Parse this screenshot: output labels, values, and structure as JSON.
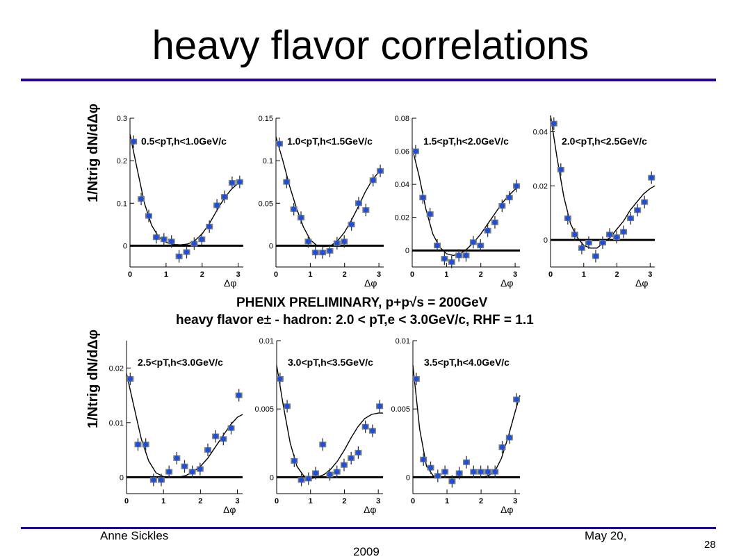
{
  "slide": {
    "title": "heavy flavor correlations",
    "caption_line1": "PHENIX PRELIMINARY, p+p√s = 200GeV",
    "caption_line2": "heavy flavor e± - hadron: 2.0 < pT,e < 3.0GeV/c, RHF = 1.1",
    "yaxis_label": "1/Ntrig dN/dΔφ"
  },
  "footer": {
    "author": "Anne Sickles",
    "date_line1": "May 20,",
    "date_line2": "2009",
    "page": "28"
  },
  "colors": {
    "rule": "#2200aa",
    "marker": "#1a4fe0",
    "marker_edge": "#7a7a7a"
  },
  "chart_data": [
    {
      "type": "scatter",
      "label": "0.5<pT,h<1.0GeV/c",
      "xlabel": "Δφ",
      "ylim": [
        -0.05,
        0.3
      ],
      "xlim": [
        0,
        3.14
      ],
      "yticks": [
        0,
        0.1,
        0.2,
        0.3
      ],
      "ytick_labels": [
        "0",
        "0.1",
        "0.2",
        "0.3"
      ],
      "xticks": [
        0,
        1,
        2,
        3
      ],
      "xtick_labels": [
        "0",
        "1",
        "2",
        "3"
      ],
      "series": [
        {
          "x": [
            0.1,
            0.31,
            0.52,
            0.73,
            0.94,
            1.15,
            1.36,
            1.57,
            1.78,
            1.99,
            2.2,
            2.41,
            2.62,
            2.83,
            3.04
          ],
          "y": [
            0.245,
            0.11,
            0.07,
            0.02,
            0.015,
            0.01,
            -0.025,
            -0.015,
            0.005,
            0.015,
            0.045,
            0.095,
            0.115,
            0.148,
            0.15
          ]
        },
        {
          "x": [
            0,
            0.2,
            0.4,
            0.6,
            0.8,
            1.0,
            1.2,
            1.4,
            1.6,
            1.8,
            2.0,
            2.2,
            2.4,
            2.6,
            2.8,
            3.0,
            3.14
          ],
          "y": [
            0.262,
            0.18,
            0.1,
            0.048,
            0.02,
            0.008,
            0.003,
            0.002,
            0.004,
            0.012,
            0.028,
            0.052,
            0.082,
            0.11,
            0.132,
            0.147,
            0.152
          ]
        }
      ]
    },
    {
      "type": "scatter",
      "label": "1.0<pT,h<1.5GeV/c",
      "xlabel": "Δφ",
      "ylim": [
        -0.025,
        0.15
      ],
      "xlim": [
        0,
        3.14
      ],
      "yticks": [
        0,
        0.05,
        0.1,
        0.15
      ],
      "ytick_labels": [
        "0",
        "0.05",
        "0.1",
        "0.15"
      ],
      "xticks": [
        0,
        1,
        2,
        3
      ],
      "xtick_labels": [
        "0",
        "1",
        "2",
        "3"
      ],
      "series": [
        {
          "x": [
            0.1,
            0.31,
            0.52,
            0.73,
            0.94,
            1.15,
            1.36,
            1.57,
            1.78,
            1.99,
            2.2,
            2.41,
            2.62,
            2.83,
            3.04
          ],
          "y": [
            0.12,
            0.075,
            0.043,
            0.033,
            0.005,
            -0.008,
            -0.008,
            -0.006,
            0.003,
            0.005,
            0.025,
            0.05,
            0.042,
            0.077,
            0.088
          ]
        },
        {
          "x": [
            0,
            0.2,
            0.4,
            0.6,
            0.8,
            1.0,
            1.2,
            1.4,
            1.6,
            1.8,
            2.0,
            2.2,
            2.4,
            2.6,
            2.8,
            3.0,
            3.14
          ],
          "y": [
            0.128,
            0.1,
            0.07,
            0.044,
            0.022,
            0.007,
            0.0,
            -0.001,
            0.0,
            0.006,
            0.016,
            0.03,
            0.046,
            0.063,
            0.077,
            0.087,
            0.09
          ]
        }
      ]
    },
    {
      "type": "scatter",
      "label": "1.5<pT,h<2.0GeV/c",
      "xlabel": "Δφ",
      "ylim": [
        -0.01,
        0.08
      ],
      "xlim": [
        0,
        3.14
      ],
      "yticks": [
        0,
        0.02,
        0.04,
        0.06,
        0.08
      ],
      "ytick_labels": [
        "0",
        "0.02",
        "0.04",
        "0.06",
        "0.08"
      ],
      "xticks": [
        0,
        1,
        2,
        3
      ],
      "xtick_labels": [
        "0",
        "1",
        "2",
        "3"
      ],
      "series": [
        {
          "x": [
            0.1,
            0.31,
            0.52,
            0.73,
            0.94,
            1.15,
            1.36,
            1.57,
            1.78,
            1.99,
            2.2,
            2.41,
            2.62,
            2.83,
            3.04
          ],
          "y": [
            0.06,
            0.032,
            0.022,
            0.003,
            -0.005,
            -0.007,
            -0.003,
            -0.003,
            0.005,
            0.003,
            0.012,
            0.017,
            0.027,
            0.032,
            0.039
          ]
        },
        {
          "x": [
            0,
            0.2,
            0.4,
            0.6,
            0.8,
            1.0,
            1.2,
            1.4,
            1.6,
            1.8,
            2.0,
            2.2,
            2.4,
            2.6,
            2.8,
            3.0,
            3.14
          ],
          "y": [
            0.062,
            0.045,
            0.025,
            0.01,
            0.002,
            -0.002,
            -0.003,
            -0.002,
            0.001,
            0.005,
            0.01,
            0.016,
            0.022,
            0.028,
            0.033,
            0.037,
            0.039
          ]
        }
      ]
    },
    {
      "type": "scatter",
      "label": "2.0<pT,h<2.5GeV/c",
      "xlabel": "Δφ",
      "ylim": [
        -0.01,
        0.045
      ],
      "xlim": [
        0,
        3.14
      ],
      "yticks": [
        0,
        0.02,
        0.04
      ],
      "ytick_labels": [
        "0",
        "0.02",
        "0.04"
      ],
      "xticks": [
        0,
        1,
        2,
        3
      ],
      "xtick_labels": [
        "0",
        "1",
        "2",
        "3"
      ],
      "series": [
        {
          "x": [
            0.1,
            0.31,
            0.52,
            0.73,
            0.94,
            1.15,
            1.36,
            1.57,
            1.78,
            1.99,
            2.2,
            2.41,
            2.62,
            2.83,
            3.04
          ],
          "y": [
            0.043,
            0.026,
            0.008,
            0.002,
            -0.003,
            -0.001,
            -0.006,
            -0.001,
            0.002,
            0.001,
            0.003,
            0.008,
            0.011,
            0.014,
            0.023
          ]
        },
        {
          "x": [
            0,
            0.2,
            0.4,
            0.6,
            0.8,
            1.0,
            1.2,
            1.4,
            1.6,
            1.8,
            2.0,
            2.2,
            2.4,
            2.6,
            2.8,
            3.0,
            3.14
          ],
          "y": [
            0.046,
            0.03,
            0.016,
            0.006,
            0.001,
            -0.002,
            -0.003,
            -0.003,
            -0.001,
            0.001,
            0.004,
            0.007,
            0.011,
            0.014,
            0.017,
            0.019,
            0.02
          ]
        }
      ]
    },
    {
      "type": "scatter",
      "label": "2.5<pT,h<3.0GeV/c",
      "xlabel": "Δφ",
      "ylim": [
        -0.003,
        0.025
      ],
      "xlim": [
        0,
        3.14
      ],
      "yticks": [
        0,
        0.01,
        0.02
      ],
      "ytick_labels": [
        "0",
        "0.01",
        "0.02"
      ],
      "xticks": [
        0,
        1,
        2,
        3
      ],
      "xtick_labels": [
        "0",
        "1",
        "2",
        "3"
      ],
      "series": [
        {
          "x": [
            0.1,
            0.31,
            0.52,
            0.73,
            0.94,
            1.15,
            1.36,
            1.57,
            1.78,
            1.99,
            2.2,
            2.41,
            2.62,
            2.83,
            3.04
          ],
          "y": [
            0.018,
            0.006,
            0.006,
            -0.0005,
            -0.0005,
            0.001,
            0.0035,
            0.002,
            0.001,
            0.0015,
            0.005,
            0.0075,
            0.007,
            0.009,
            0.015
          ]
        },
        {
          "x": [
            0,
            0.2,
            0.4,
            0.6,
            0.8,
            1.0,
            1.2,
            1.4,
            1.6,
            1.8,
            2.0,
            2.2,
            2.4,
            2.6,
            2.8,
            3.0,
            3.14
          ],
          "y": [
            0.019,
            0.013,
            0.007,
            0.003,
            0.0008,
            0.0001,
            0.0,
            0.0,
            0.0003,
            0.001,
            0.002,
            0.0035,
            0.0055,
            0.0075,
            0.0095,
            0.011,
            0.0115
          ]
        }
      ]
    },
    {
      "type": "scatter",
      "label": "3.0<pT,h<3.5GeV/c",
      "xlabel": "Δφ",
      "ylim": [
        -0.0012,
        0.01
      ],
      "xlim": [
        0,
        3.14
      ],
      "yticks": [
        0,
        0.005,
        0.01
      ],
      "ytick_labels": [
        "0",
        "0.005",
        "0.01"
      ],
      "xticks": [
        0,
        1,
        2,
        3
      ],
      "xtick_labels": [
        "0",
        "1",
        "2",
        "3"
      ],
      "series": [
        {
          "x": [
            0.1,
            0.31,
            0.52,
            0.73,
            0.94,
            1.15,
            1.36,
            1.57,
            1.78,
            1.99,
            2.2,
            2.41,
            2.62,
            2.83,
            3.04
          ],
          "y": [
            0.0072,
            0.0052,
            0.0012,
            -0.0002,
            -0.0001,
            0.0003,
            0.0024,
            0.0002,
            0.0004,
            0.0009,
            0.0014,
            0.0018,
            0.0037,
            0.0034,
            0.0052
          ]
        },
        {
          "x": [
            0,
            0.2,
            0.4,
            0.6,
            0.8,
            1.0,
            1.2,
            1.4,
            1.6,
            1.8,
            2.0,
            2.2,
            2.4,
            2.6,
            2.8,
            3.0,
            3.14
          ],
          "y": [
            0.0082,
            0.0052,
            0.0025,
            0.0008,
            0.0001,
            -0.0001,
            0.0,
            0.0002,
            0.0006,
            0.0012,
            0.002,
            0.0029,
            0.0037,
            0.0043,
            0.0046,
            0.0047,
            0.0047
          ]
        }
      ]
    },
    {
      "type": "scatter",
      "label": "3.5<pT,h<4.0GeV/c",
      "xlabel": "Δφ",
      "ylim": [
        -0.0012,
        0.01
      ],
      "xlim": [
        0,
        3.14
      ],
      "yticks": [
        0,
        0.005,
        0.01
      ],
      "ytick_labels": [
        "0",
        "0.005",
        "0.01"
      ],
      "xticks": [
        0,
        1,
        2,
        3
      ],
      "xtick_labels": [
        "0",
        "1",
        "2",
        "3"
      ],
      "series": [
        {
          "x": [
            0.1,
            0.31,
            0.52,
            0.73,
            0.94,
            1.15,
            1.36,
            1.57,
            1.78,
            1.99,
            2.2,
            2.41,
            2.62,
            2.83,
            3.04
          ],
          "y": [
            0.0072,
            0.0013,
            0.0007,
            0.0001,
            0.0004,
            -0.0003,
            0.0003,
            0.0011,
            0.0004,
            0.0004,
            0.0004,
            0.0004,
            0.0022,
            0.0029,
            0.0057
          ]
        },
        {
          "x": [
            0,
            0.2,
            0.4,
            0.6,
            0.8,
            1.0,
            1.2,
            1.4,
            1.6,
            1.8,
            2.0,
            2.2,
            2.4,
            2.6,
            2.8,
            3.0,
            3.14
          ],
          "y": [
            0.0082,
            0.0035,
            0.0008,
            0.0001,
            0.0,
            0.0,
            0.0,
            0.0,
            0.0,
            0.0,
            0.0,
            0.0001,
            0.0004,
            0.0014,
            0.003,
            0.0048,
            0.006
          ]
        }
      ]
    }
  ]
}
